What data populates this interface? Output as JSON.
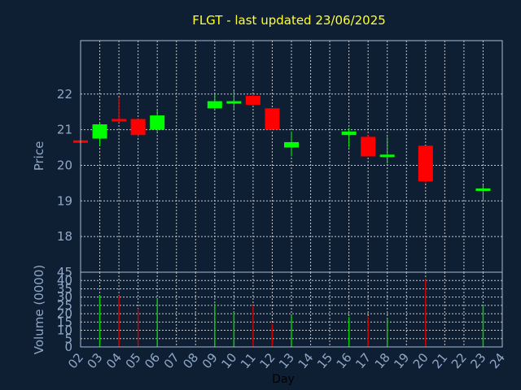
{
  "chart_data": {
    "type": "candlestick",
    "title": "FLGT - last updated 23/06/2025",
    "xlabel": "Day",
    "price_panel": {
      "ylabel": "Price",
      "ylim": [
        17,
        23.5
      ],
      "yticks": [
        18,
        19,
        20,
        21,
        22
      ],
      "grid": true
    },
    "volume_panel": {
      "ylabel": "Volume (0000)",
      "ylim": [
        0,
        45
      ],
      "yticks": [
        0,
        5,
        10,
        15,
        20,
        25,
        30,
        35,
        40,
        45
      ],
      "grid": true
    },
    "x_tick_labels": [
      "02",
      "03",
      "04",
      "05",
      "06",
      "07",
      "08",
      "09",
      "10",
      "11",
      "12",
      "13",
      "14",
      "15",
      "16",
      "17",
      "18",
      "19",
      "20",
      "21",
      "22",
      "23",
      "24"
    ],
    "candles": [
      {
        "day": "02",
        "open": 20.7,
        "close": 20.65,
        "high": 20.7,
        "low": 20.65,
        "volume": 0
      },
      {
        "day": "03",
        "open": 20.75,
        "close": 21.15,
        "high": 21.2,
        "low": 20.55,
        "volume": 31
      },
      {
        "day": "04",
        "open": 21.3,
        "close": 21.25,
        "high": 21.9,
        "low": 21.2,
        "volume": 31
      },
      {
        "day": "05",
        "open": 21.3,
        "close": 20.85,
        "high": 21.3,
        "low": 20.8,
        "volume": 23
      },
      {
        "day": "06",
        "open": 21.0,
        "close": 21.4,
        "high": 21.55,
        "low": 20.95,
        "volume": 29
      },
      {
        "day": "09",
        "open": 21.6,
        "close": 21.8,
        "high": 22.0,
        "low": 21.55,
        "volume": 26
      },
      {
        "day": "10",
        "open": 21.75,
        "close": 21.8,
        "high": 22.1,
        "low": 21.55,
        "volume": 21
      },
      {
        "day": "11",
        "open": 21.95,
        "close": 21.7,
        "high": 22.0,
        "low": 21.7,
        "volume": 25
      },
      {
        "day": "12",
        "open": 21.6,
        "close": 21.0,
        "high": 21.6,
        "low": 21.0,
        "volume": 14
      },
      {
        "day": "13",
        "open": 20.5,
        "close": 20.65,
        "high": 20.95,
        "low": 20.25,
        "volume": 19
      },
      {
        "day": "16",
        "open": 20.85,
        "close": 20.95,
        "high": 21.05,
        "low": 20.5,
        "volume": 18
      },
      {
        "day": "17",
        "open": 20.8,
        "close": 20.25,
        "high": 20.85,
        "low": 20.25,
        "volume": 18
      },
      {
        "day": "18",
        "open": 20.25,
        "close": 20.3,
        "high": 20.8,
        "low": 20.05,
        "volume": 17
      },
      {
        "day": "20",
        "open": 20.55,
        "close": 19.55,
        "high": 20.55,
        "low": 19.5,
        "volume": 41
      },
      {
        "day": "23",
        "open": 19.3,
        "close": 19.35,
        "high": 19.45,
        "low": 19.0,
        "volume": 25
      }
    ],
    "colors": {
      "background": "#0f1f33",
      "title": "#ffff33",
      "axis_text": "#8fa8c8",
      "grid": "#c8c8c8",
      "frame": "#a8b8d0",
      "up": "#00ff00",
      "down": "#ff0000",
      "vol_up": "#00cc00",
      "vol_down": "#cc0000"
    }
  }
}
